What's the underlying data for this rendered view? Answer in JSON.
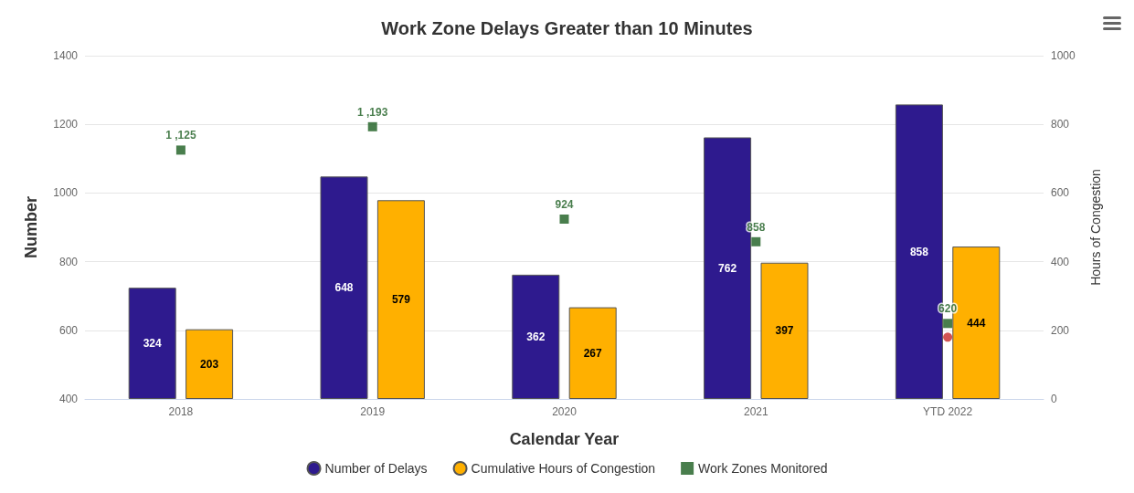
{
  "chart_data": {
    "type": "bar",
    "title": "Work Zone Delays Greater than 10 Minutes",
    "xlabel": "Calendar Year",
    "ylabel": "Number",
    "y2label": "Hours of Congestion",
    "categories": [
      "2018",
      "2019",
      "2020",
      "2021",
      "YTD 2022"
    ],
    "series": [
      {
        "name": "Number of Delays",
        "color": "#2e1a8e",
        "axis": "y2",
        "values": [
          324,
          648,
          362,
          762,
          858
        ],
        "value_labels": [
          "324",
          "648",
          "362",
          "762",
          "858"
        ]
      },
      {
        "name": "Cumulative Hours of Congestion",
        "color": "#ffb000",
        "axis": "y2",
        "values": [
          203,
          579,
          267,
          397,
          444
        ],
        "value_labels": [
          "203",
          "579",
          "267",
          "397",
          "444"
        ]
      },
      {
        "name": "Work Zones Monitored",
        "type": "scatter",
        "marker": "square",
        "color": "#1b5e20",
        "values": [
          1125,
          1193,
          924,
          858,
          620
        ],
        "value_labels": [
          "1 ,125",
          "1 ,193",
          "924",
          "858",
          "620"
        ]
      },
      {
        "type": "scatter",
        "marker": "circle",
        "color": "#c62828",
        "values": [
          null,
          null,
          null,
          null,
          580
        ]
      }
    ],
    "ylim": [
      400,
      1400
    ],
    "yticks": [
      400,
      600,
      800,
      1000,
      1200,
      1400
    ],
    "y2lim": [
      0,
      1000
    ],
    "y2ticks": [
      0,
      200,
      400,
      600,
      800,
      1000
    ],
    "grid": "y",
    "legend": "bottom"
  }
}
